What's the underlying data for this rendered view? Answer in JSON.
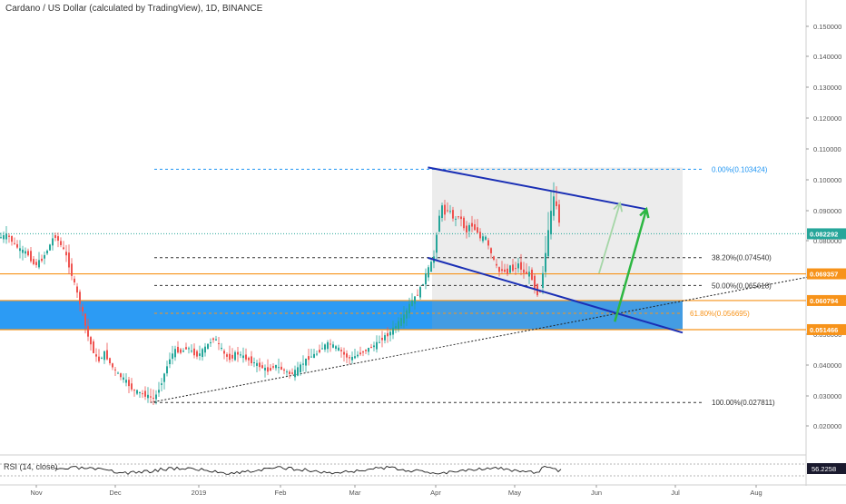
{
  "header": {
    "title": "Cardano / US Dollar (calculated by TradingView), 1D, BINANCE"
  },
  "chart_data": {
    "type": "candlestick",
    "title": "Cardano / US Dollar (calculated by TradingView), 1D, BINANCE",
    "symbol": "ADAUSD",
    "interval": "1D",
    "exchange": "BINANCE",
    "ylim": [
      0.015,
      0.157
    ],
    "price_ticks": [
      "0.150000",
      "0.140000",
      "0.130000",
      "0.120000",
      "0.110000",
      "0.100000",
      "0.090000",
      "0.080000",
      "0.050000",
      "0.040000",
      "0.030000",
      "0.020000"
    ],
    "price_tick_values": [
      0.15,
      0.14,
      0.13,
      0.12,
      0.11,
      0.1,
      0.09,
      0.08,
      0.05,
      0.04,
      0.03,
      0.02
    ],
    "time_ticks": [
      "Nov",
      "Dec",
      "2019",
      "Feb",
      "Mar",
      "Apr",
      "May",
      "Jun",
      "Jul",
      "Aug"
    ],
    "current_price": {
      "label": "0.082292",
      "value": 0.082292,
      "color": "#26a69a"
    },
    "price_markers": [
      {
        "label": "0.069357",
        "value": 0.069357,
        "color": "#f7931a"
      },
      {
        "label": "0.060794",
        "value": 0.060794,
        "color": "#f7931a"
      },
      {
        "label": "0.051466",
        "value": 0.051466,
        "color": "#f7931a"
      }
    ],
    "fibonacci": [
      {
        "label": "0.00%(0.103424)",
        "value": 0.103424,
        "color": "#2196f3"
      },
      {
        "label": "38.20%(0.074540)",
        "value": 0.07454,
        "color": "#333333"
      },
      {
        "label": "50.00%(0.065618)",
        "value": 0.065618,
        "color": "#333333"
      },
      {
        "label": "61.80%(0.056695)",
        "value": 0.056695,
        "color": "#f7931a"
      },
      {
        "label": "100.00%(0.027811)",
        "value": 0.027811,
        "color": "#333333"
      }
    ],
    "support_zone": {
      "top": 0.060794,
      "bottom": 0.051466,
      "color": "#2196f3"
    },
    "channel": {
      "upper": [
        [
          "2019-03-29",
          0.104
        ],
        [
          "2019-06-20",
          0.0905
        ]
      ],
      "lower": [
        [
          "2019-03-29",
          0.0745
        ],
        [
          "2019-06-20",
          0.0505
        ]
      ],
      "color": "#1a2fb5"
    },
    "trendline": {
      "from": [
        "2018-12-14",
        0.0278
      ],
      "to": [
        "2019-08-28",
        0.0695
      ]
    },
    "arrows": [
      {
        "from": [
          "2019-06-02",
          0.0695
        ],
        "to": [
          "2019-06-10",
          0.0925
        ],
        "color": "#a5d6a7"
      },
      {
        "from": [
          "2019-06-08",
          0.054
        ],
        "to": [
          "2019-06-20",
          0.0905
        ],
        "color": "#2db742"
      }
    ],
    "candles": [],
    "rsi": {
      "label": "RSI (14, close)",
      "value_label": "56.2258",
      "value": 56.2258
    }
  }
}
